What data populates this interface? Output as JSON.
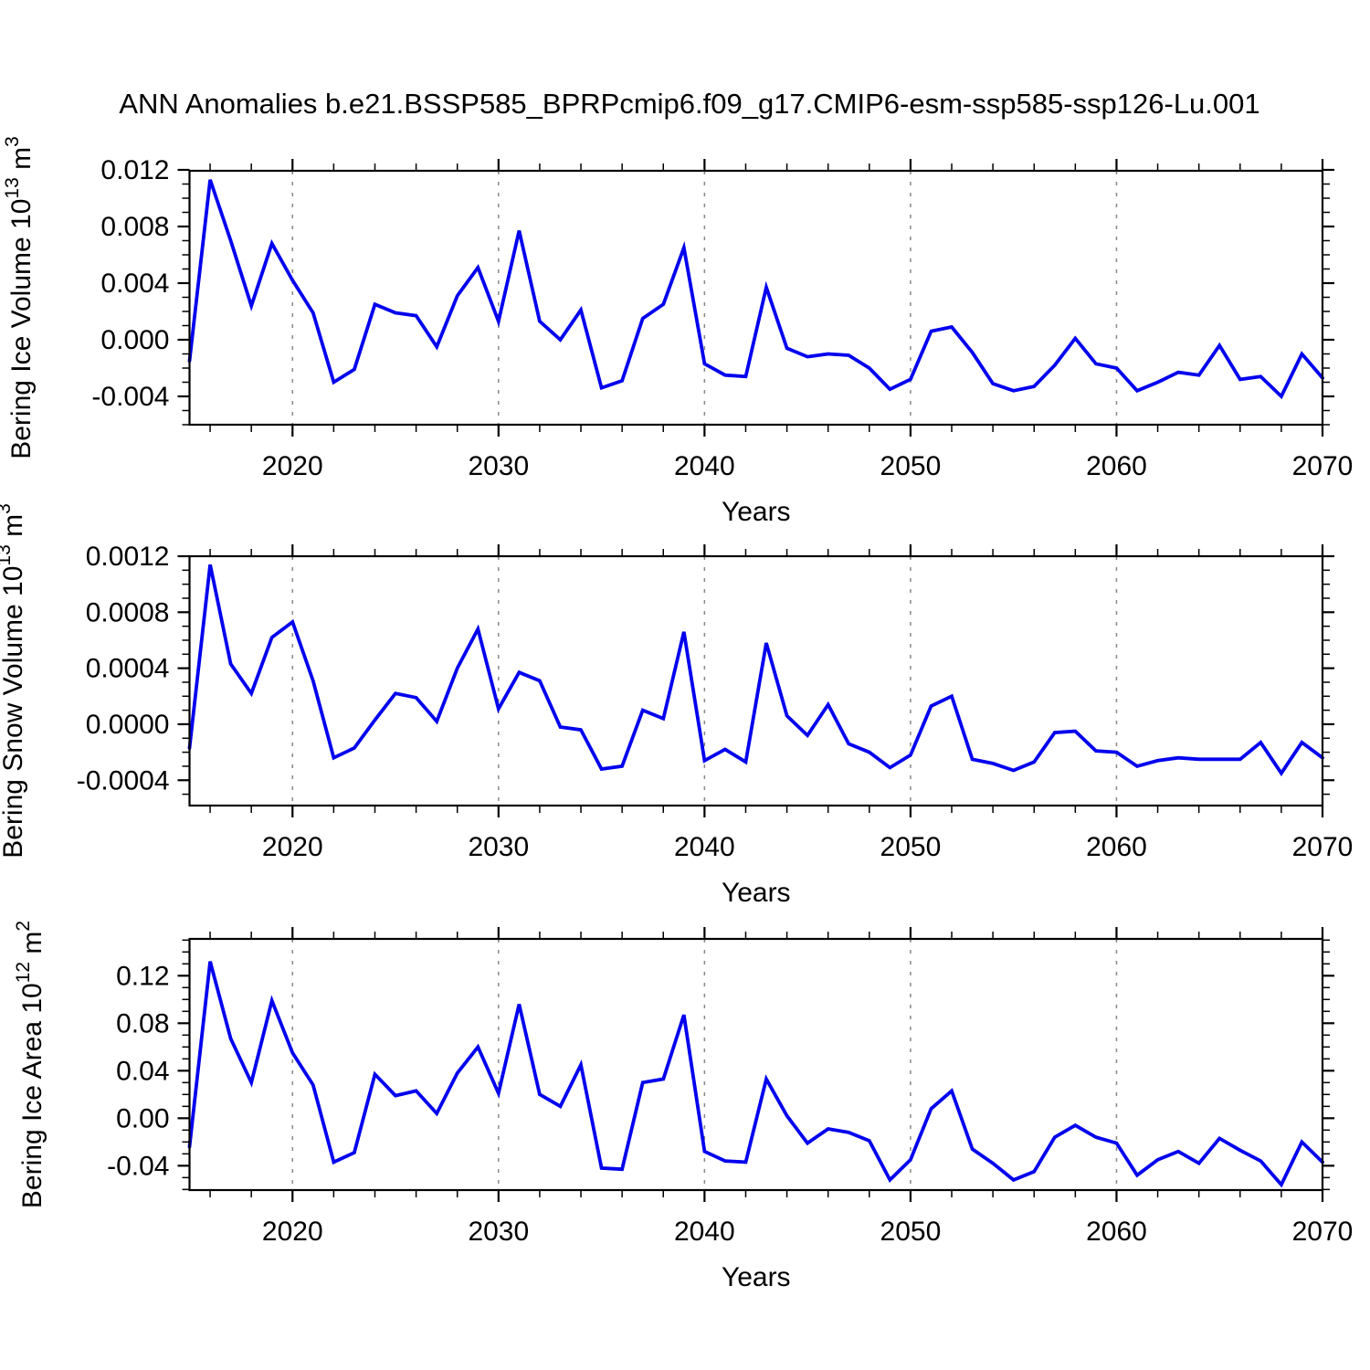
{
  "title": "ANN Anomalies b.e21.BSSP585_BPRPcmip6.f09_g17.CMIP6-esm-ssp585-ssp126-Lu.001",
  "colors": {
    "line": "#0000ee",
    "axis": "#000000",
    "grid": "#888888",
    "text": "#000000",
    "background": "#ffffff"
  },
  "chart_data": [
    {
      "type": "line",
      "ylabel": "Bering Ice Volume 10^13 m^3",
      "ylabel_parts": [
        {
          "text": "Bering Ice Volume 10"
        },
        {
          "text": "13",
          "super": true
        },
        {
          "text": " m"
        },
        {
          "text": "3",
          "super": true
        }
      ],
      "xlabel": "Years",
      "xlim": [
        2015,
        2070
      ],
      "ylim": [
        -0.006,
        0.011935
      ],
      "xticks": [
        2020,
        2030,
        2040,
        2050,
        2060,
        2070
      ],
      "xtick_minor_step": 2,
      "grid_x": [
        2020,
        2030,
        2040,
        2050,
        2060
      ],
      "ytick_values": [
        -0.004,
        0.0,
        0.004,
        0.008,
        0.012
      ],
      "ytick_labels": [
        "-0.004",
        "0.000",
        "0.004",
        "0.008",
        "0.012"
      ],
      "ytick_minor_step": 0.001,
      "x": [
        2015,
        2016,
        2017,
        2018,
        2019,
        2020,
        2021,
        2022,
        2023,
        2024,
        2025,
        2026,
        2027,
        2028,
        2029,
        2030,
        2031,
        2032,
        2033,
        2034,
        2035,
        2036,
        2037,
        2038,
        2039,
        2040,
        2041,
        2042,
        2043,
        2044,
        2045,
        2046,
        2047,
        2048,
        2049,
        2050,
        2051,
        2052,
        2053,
        2054,
        2055,
        2056,
        2057,
        2058,
        2059,
        2060,
        2061,
        2062,
        2063,
        2064,
        2065,
        2066,
        2067,
        2068,
        2069,
        2070
      ],
      "values": [
        -0.0015,
        0.0113,
        0.007,
        0.0024,
        0.0068,
        0.0042,
        0.0019,
        -0.003,
        -0.0021,
        0.0025,
        0.0019,
        0.0017,
        -0.0005,
        0.0031,
        0.0051,
        0.0013,
        0.0077,
        0.0013,
        0.0,
        0.0021,
        -0.0034,
        -0.0029,
        0.0015,
        0.0025,
        0.0065,
        -0.0017,
        -0.0025,
        -0.0026,
        0.0037,
        -0.0006,
        -0.0012,
        -0.001,
        -0.0011,
        -0.002,
        -0.0035,
        -0.0028,
        0.0006,
        0.0009,
        -0.0009,
        -0.0031,
        -0.0036,
        -0.0033,
        -0.0018,
        0.0001,
        -0.0017,
        -0.002,
        -0.0036,
        -0.003,
        -0.0023,
        -0.0025,
        -0.0004,
        -0.0028,
        -0.0026,
        -0.004,
        -0.001,
        -0.0027
      ]
    },
    {
      "type": "line",
      "ylabel": "Bering Snow Volume 10^13 m^3",
      "ylabel_parts": [
        {
          "text": "Bering Snow Volume 10"
        },
        {
          "text": "13",
          "super": true
        },
        {
          "text": " m"
        },
        {
          "text": "3",
          "super": true
        }
      ],
      "xlabel": "Years",
      "xlim": [
        2015,
        2070
      ],
      "ylim": [
        -0.000581,
        0.0012
      ],
      "xticks": [
        2020,
        2030,
        2040,
        2050,
        2060,
        2070
      ],
      "xtick_minor_step": 2,
      "grid_x": [
        2020,
        2030,
        2040,
        2050,
        2060
      ],
      "ytick_values": [
        -0.0004,
        0.0,
        0.0004,
        0.0008,
        0.0012
      ],
      "ytick_labels": [
        "-0.0004",
        "0.0000",
        "0.0004",
        "0.0008",
        "0.0012"
      ],
      "ytick_minor_step": 0.0001,
      "x": [
        2015,
        2016,
        2017,
        2018,
        2019,
        2020,
        2021,
        2022,
        2023,
        2024,
        2025,
        2026,
        2027,
        2028,
        2029,
        2030,
        2031,
        2032,
        2033,
        2034,
        2035,
        2036,
        2037,
        2038,
        2039,
        2040,
        2041,
        2042,
        2043,
        2044,
        2045,
        2046,
        2047,
        2048,
        2049,
        2050,
        2051,
        2052,
        2053,
        2054,
        2055,
        2056,
        2057,
        2058,
        2059,
        2060,
        2061,
        2062,
        2063,
        2064,
        2065,
        2066,
        2067,
        2068,
        2069,
        2070
      ],
      "values": [
        -0.00017,
        0.00114,
        0.00043,
        0.00022,
        0.00062,
        0.00073,
        0.00031,
        -0.00024,
        -0.00017,
        3e-05,
        0.00022,
        0.00019,
        2e-05,
        0.0004,
        0.00068,
        0.00011,
        0.00037,
        0.00031,
        -2e-05,
        -4e-05,
        -0.00032,
        -0.0003,
        0.0001,
        4e-05,
        0.00066,
        -0.00026,
        -0.00018,
        -0.00027,
        0.00058,
        6e-05,
        -8e-05,
        0.00014,
        -0.00014,
        -0.0002,
        -0.00031,
        -0.00022,
        0.00013,
        0.0002,
        -0.00025,
        -0.00028,
        -0.00033,
        -0.00027,
        -6e-05,
        -5e-05,
        -0.00019,
        -0.0002,
        -0.0003,
        -0.00026,
        -0.00024,
        -0.00025,
        -0.00025,
        -0.00025,
        -0.00013,
        -0.00035,
        -0.00013,
        -0.00024
      ]
    },
    {
      "type": "line",
      "ylabel": "Bering Ice Area 10^12 m^2",
      "ylabel_parts": [
        {
          "text": "Bering Ice Area 10"
        },
        {
          "text": "12",
          "super": true
        },
        {
          "text": " m"
        },
        {
          "text": "2",
          "super": true
        }
      ],
      "xlabel": "Years",
      "xlim": [
        2015,
        2070
      ],
      "ylim": [
        -0.0605,
        0.151
      ],
      "xticks": [
        2020,
        2030,
        2040,
        2050,
        2060,
        2070
      ],
      "xtick_minor_step": 2,
      "grid_x": [
        2020,
        2030,
        2040,
        2050,
        2060
      ],
      "ytick_values": [
        -0.04,
        0.0,
        0.04,
        0.08,
        0.12
      ],
      "ytick_labels": [
        "-0.04",
        "0.00",
        "0.04",
        "0.08",
        "0.12"
      ],
      "ytick_minor_step": 0.01,
      "x": [
        2015,
        2016,
        2017,
        2018,
        2019,
        2020,
        2021,
        2022,
        2023,
        2024,
        2025,
        2026,
        2027,
        2028,
        2029,
        2030,
        2031,
        2032,
        2033,
        2034,
        2035,
        2036,
        2037,
        2038,
        2039,
        2040,
        2041,
        2042,
        2043,
        2044,
        2045,
        2046,
        2047,
        2048,
        2049,
        2050,
        2051,
        2052,
        2053,
        2054,
        2055,
        2056,
        2057,
        2058,
        2059,
        2060,
        2061,
        2062,
        2063,
        2064,
        2065,
        2066,
        2067,
        2068,
        2069,
        2070
      ],
      "values": [
        -0.024,
        0.132,
        0.067,
        0.03,
        0.099,
        0.055,
        0.028,
        -0.037,
        -0.029,
        0.037,
        0.019,
        0.023,
        0.004,
        0.038,
        0.06,
        0.021,
        0.096,
        0.02,
        0.01,
        0.045,
        -0.042,
        -0.043,
        0.03,
        0.033,
        0.087,
        -0.028,
        -0.036,
        -0.037,
        0.033,
        0.002,
        -0.021,
        -0.009,
        -0.012,
        -0.019,
        -0.052,
        -0.035,
        0.008,
        0.023,
        -0.026,
        -0.038,
        -0.052,
        -0.045,
        -0.016,
        -0.006,
        -0.016,
        -0.021,
        -0.048,
        -0.035,
        -0.028,
        -0.038,
        -0.017,
        -0.027,
        -0.036,
        -0.056,
        -0.02,
        -0.037
      ]
    }
  ]
}
